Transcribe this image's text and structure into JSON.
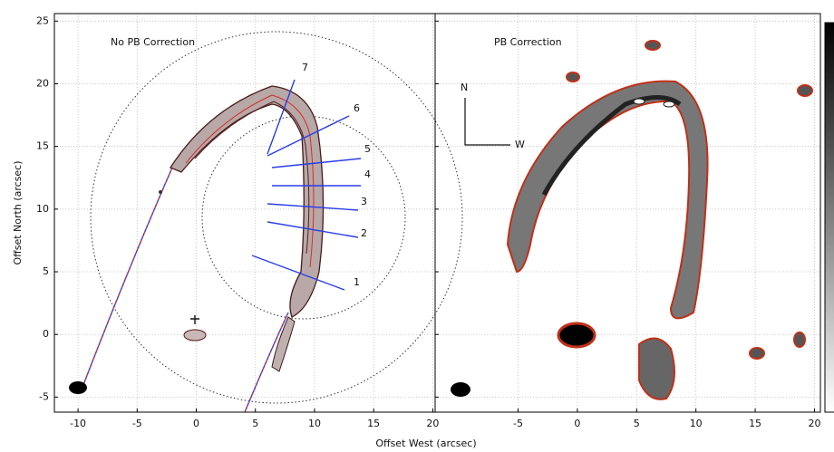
{
  "chart_data": [
    {
      "type": "contour",
      "title": "No PB Correction",
      "xlabel": "Offset West (arcsec)",
      "ylabel": "Offset North (arcsec)",
      "xlim": [
        -12,
        20.2
      ],
      "xticks": [
        -10,
        -5,
        0,
        5,
        10,
        15,
        20
      ],
      "ylim": [
        -6.2,
        25.6
      ],
      "yticks": [
        -5,
        0,
        5,
        10,
        15,
        20,
        25
      ],
      "grid": true,
      "show_yticklabels": true,
      "annotations": [
        "1",
        "2",
        "3",
        "4",
        "5",
        "6",
        "7"
      ]
    },
    {
      "type": "contour",
      "title": "PB Correction",
      "xlim": [
        -12,
        20.5
      ],
      "xticks": [
        -5,
        0,
        5,
        10,
        15,
        20
      ],
      "ylim": [
        -6.2,
        25.6
      ],
      "yticks": [
        -5,
        0,
        5,
        10,
        15,
        20,
        25
      ],
      "grid": true,
      "show_yticklabels": false,
      "colorbar": true,
      "annotations": [
        "N",
        "W"
      ]
    }
  ]
}
